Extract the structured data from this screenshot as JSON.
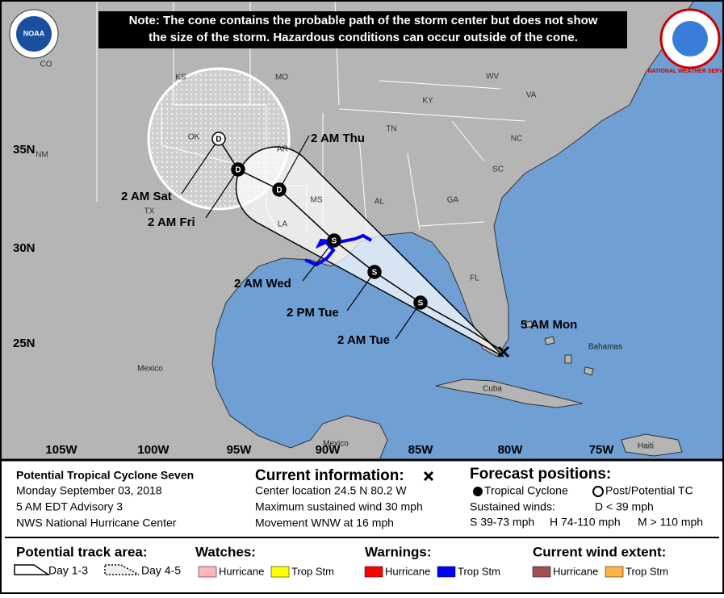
{
  "note": [
    "Note: The cone contains the probable path of the storm center but does not show",
    "the size of the storm. Hazardous conditions can occur outside of the cone."
  ],
  "logos": {
    "noaa": "NOAA",
    "nws": "NATIONAL WEATHER SERVICE"
  },
  "map_labels": {
    "states": [
      "CO",
      "KS",
      "MO",
      "OK",
      "AR",
      "TN",
      "KY",
      "WV",
      "VA",
      "NC",
      "SC",
      "GA",
      "AL",
      "MS",
      "LA",
      "TX",
      "FL",
      "NM"
    ],
    "places": [
      "Mexico",
      "Mexico",
      "Cuba",
      "Bahamas",
      "Haiti"
    ],
    "latitudes": [
      "35N",
      "30N",
      "25N"
    ],
    "longitudes": [
      "105W",
      "100W",
      "95W",
      "90W",
      "85W",
      "80W",
      "75W"
    ]
  },
  "track": [
    {
      "time": "5 AM Mon"
    },
    {
      "time": "2 AM Tue",
      "symbol": "S"
    },
    {
      "time": "2 PM Tue",
      "symbol": "S"
    },
    {
      "time": "2 AM Wed",
      "symbol": "S"
    },
    {
      "time": "2 AM Thu",
      "symbol": "D"
    },
    {
      "time": "2 AM Fri",
      "symbol": "D"
    },
    {
      "time": "2 AM Sat",
      "symbol": "D"
    }
  ],
  "info": {
    "name": "Potential Tropical Cyclone Seven",
    "date": "Monday September 03, 2018",
    "advisory": "5 AM EDT Advisory 3",
    "center": "NWS National Hurricane Center"
  },
  "current": {
    "heading": "Current information:",
    "lines": [
      "Center location 24.5 N 80.2 W",
      "Maximum sustained wind 30 mph",
      "Movement WNW at 16 mph"
    ]
  },
  "forecast": {
    "heading": "Forecast positions:",
    "tropical": "Tropical Cyclone",
    "post": "Post/Potential TC",
    "winds": "Sustained winds:",
    "d": "D < 39 mph",
    "s": "S 39-73 mph",
    "h": "H 74-110 mph",
    "m": "M > 110 mph"
  },
  "legend": {
    "track_area": "Potential track area:",
    "day13": "Day 1-3",
    "day45": "Day 4-5",
    "watches": "Watches:",
    "watch_items": [
      "Hurricane",
      "Trop Stm"
    ],
    "warnings": "Warnings:",
    "warning_items": [
      "Hurricane",
      "Trop Stm"
    ],
    "wind": "Current wind extent:",
    "wind_items": [
      "Hurricane",
      "Trop Stm"
    ]
  }
}
